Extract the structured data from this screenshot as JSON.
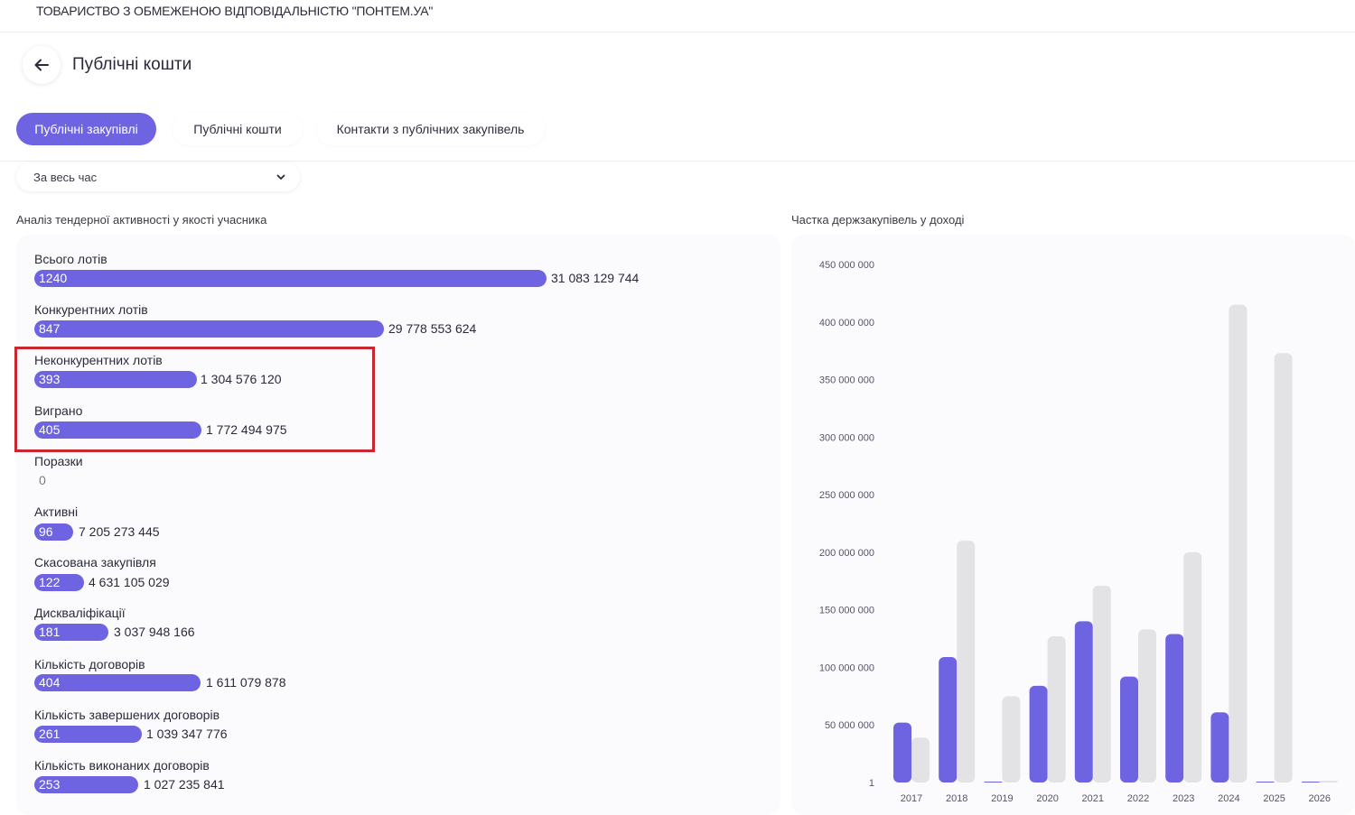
{
  "header": {
    "company_name": "ТОВАРИСТВО З ОБМЕЖЕНОЮ ВІДПОВІДАЛЬНІСТЮ \"ПОНТЕМ.УА\"",
    "page_title": "Публічні кошти",
    "back_icon": "arrow-left-icon"
  },
  "tabs": [
    {
      "label": "Публічні закупівлі",
      "active": true
    },
    {
      "label": "Публічні кошти",
      "active": false
    },
    {
      "label": "Контакти з публічних закупівель",
      "active": false
    }
  ],
  "filter": {
    "period": "За весь час",
    "icon": "chevron-down-icon"
  },
  "left_section": {
    "title": "Аналіз тендерної активності у якості учасника",
    "metrics": [
      {
        "label": "Всього лотів",
        "count": "1240",
        "amount": "31 083 129 744"
      },
      {
        "label": "Конкурентних лотів",
        "count": "847",
        "amount": "29 778 553 624"
      },
      {
        "label": "Неконкурентних лотів",
        "count": "393",
        "amount": "1 304 576 120"
      },
      {
        "label": "Виграно",
        "count": "405",
        "amount": "1 772 494 975"
      },
      {
        "label": "Поразки",
        "count": "0",
        "amount": ""
      },
      {
        "label": "Активні",
        "count": "96",
        "amount": "7 205 273 445"
      },
      {
        "label": "Скасована закупівля",
        "count": "122",
        "amount": "4 631 105 029"
      },
      {
        "label": "Дискваліфікації",
        "count": "181",
        "amount": "3 037 948 166"
      },
      {
        "label": "Кількість договорів",
        "count": "404",
        "amount": "1 611 079 878"
      },
      {
        "label": "Кількість завершених договорів",
        "count": "261",
        "amount": "1 039 347 776"
      },
      {
        "label": "Кількість виконаних договорів",
        "count": "253",
        "amount": "1 027 235 841"
      }
    ],
    "highlight_color": "#c8282d"
  },
  "right_section": {
    "title": "Частка держзакупівель у доході"
  },
  "colors": {
    "accent": "#6e63e0",
    "secondary_bar": "#e3e3e6",
    "highlight": "#c8282d"
  },
  "chart_data": {
    "type": "bar",
    "title": "Частка держзакупівель у доході",
    "categories": [
      "2017",
      "2018",
      "2019",
      "2020",
      "2021",
      "2022",
      "2023",
      "2024",
      "2025",
      "2026"
    ],
    "series": [
      {
        "values": [
          52000000,
          109000000,
          0,
          84000000,
          140000000,
          92000000,
          129000000,
          61000000,
          0,
          0
        ],
        "color": "#6e63e0"
      },
      {
        "values": [
          39000000,
          210000000,
          75000000,
          127000000,
          171000000,
          133000000,
          200000000,
          415000000,
          373000000,
          1000000
        ],
        "color": "#e3e3e6"
      }
    ],
    "yticks": [
      "450 000 000",
      "400 000 000",
      "350 000 000",
      "300 000 000",
      "250 000 000",
      "200 000 000",
      "150 000 000",
      "100 000 000",
      "50 000 000",
      "1"
    ],
    "ylim": [
      0,
      450000000
    ],
    "xlabel": "",
    "ylabel": "",
    "grid": false,
    "legend": "none"
  }
}
